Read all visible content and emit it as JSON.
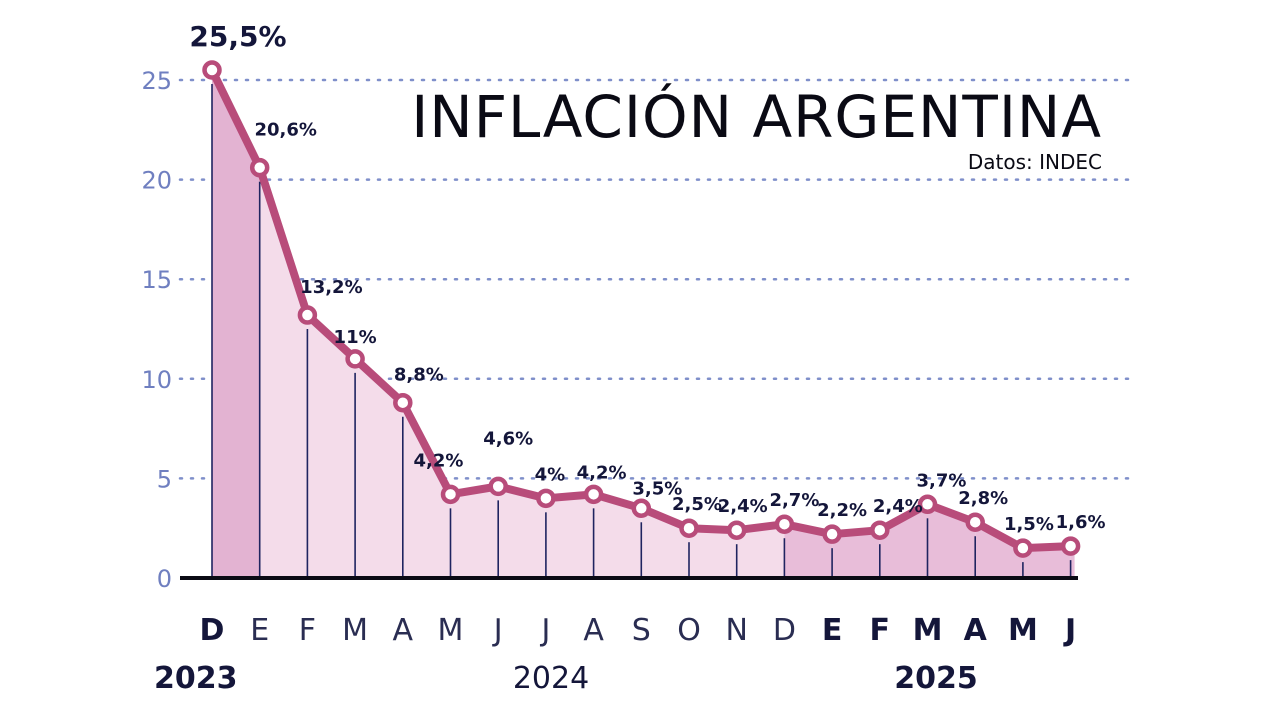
{
  "chart_data": {
    "type": "area",
    "title": "INFLACIÓN ARGENTINA",
    "subtitle": "Datos: INDEC",
    "categories": [
      "D",
      "E",
      "F",
      "M",
      "A",
      "M",
      "J",
      "J",
      "A",
      "S",
      "O",
      "N",
      "D",
      "E",
      "F",
      "M",
      "A",
      "M",
      "J"
    ],
    "bold_categories": [
      0,
      13,
      14,
      15,
      16,
      17,
      18
    ],
    "years": [
      {
        "label": "2023",
        "from": 0,
        "to": 0,
        "bold": true
      },
      {
        "label": "2024",
        "from": 1,
        "to": 12,
        "bold": false
      },
      {
        "label": "2025",
        "from": 13,
        "to": 18,
        "bold": true
      }
    ],
    "series": [
      {
        "values": [
          25.5,
          20.6,
          13.2,
          11,
          8.8,
          4.2,
          4.6,
          4.0,
          4.2,
          3.5,
          2.5,
          2.4,
          2.7,
          2.2,
          2.4,
          3.7,
          2.8,
          1.5,
          1.6
        ],
        "labels": [
          "25,5%",
          "20,6%",
          "13,2%",
          "11%",
          "8,8%",
          "4,2%",
          "4,6%",
          "4%",
          "4,2%",
          "3,5%",
          "2,5%",
          "2,4%",
          "2,7%",
          "2,2%",
          "2,4%",
          "3,7%",
          "2,8%",
          "1,5%",
          "1,6%"
        ]
      }
    ],
    "yticks": [
      0,
      5,
      10,
      15,
      20,
      25
    ],
    "ylim": [
      0,
      25
    ],
    "grid": true,
    "colors": {
      "line": "#b84c7a",
      "fill_2023": "#e3b3d2",
      "fill_2024": "#f4dcea",
      "fill_2025": "#e8bdd9",
      "axis": "#0a0a14",
      "grid": "#7f8fca",
      "tick": "#6f7fc0",
      "label": "#14163a",
      "year_2024": "#14163a"
    }
  }
}
